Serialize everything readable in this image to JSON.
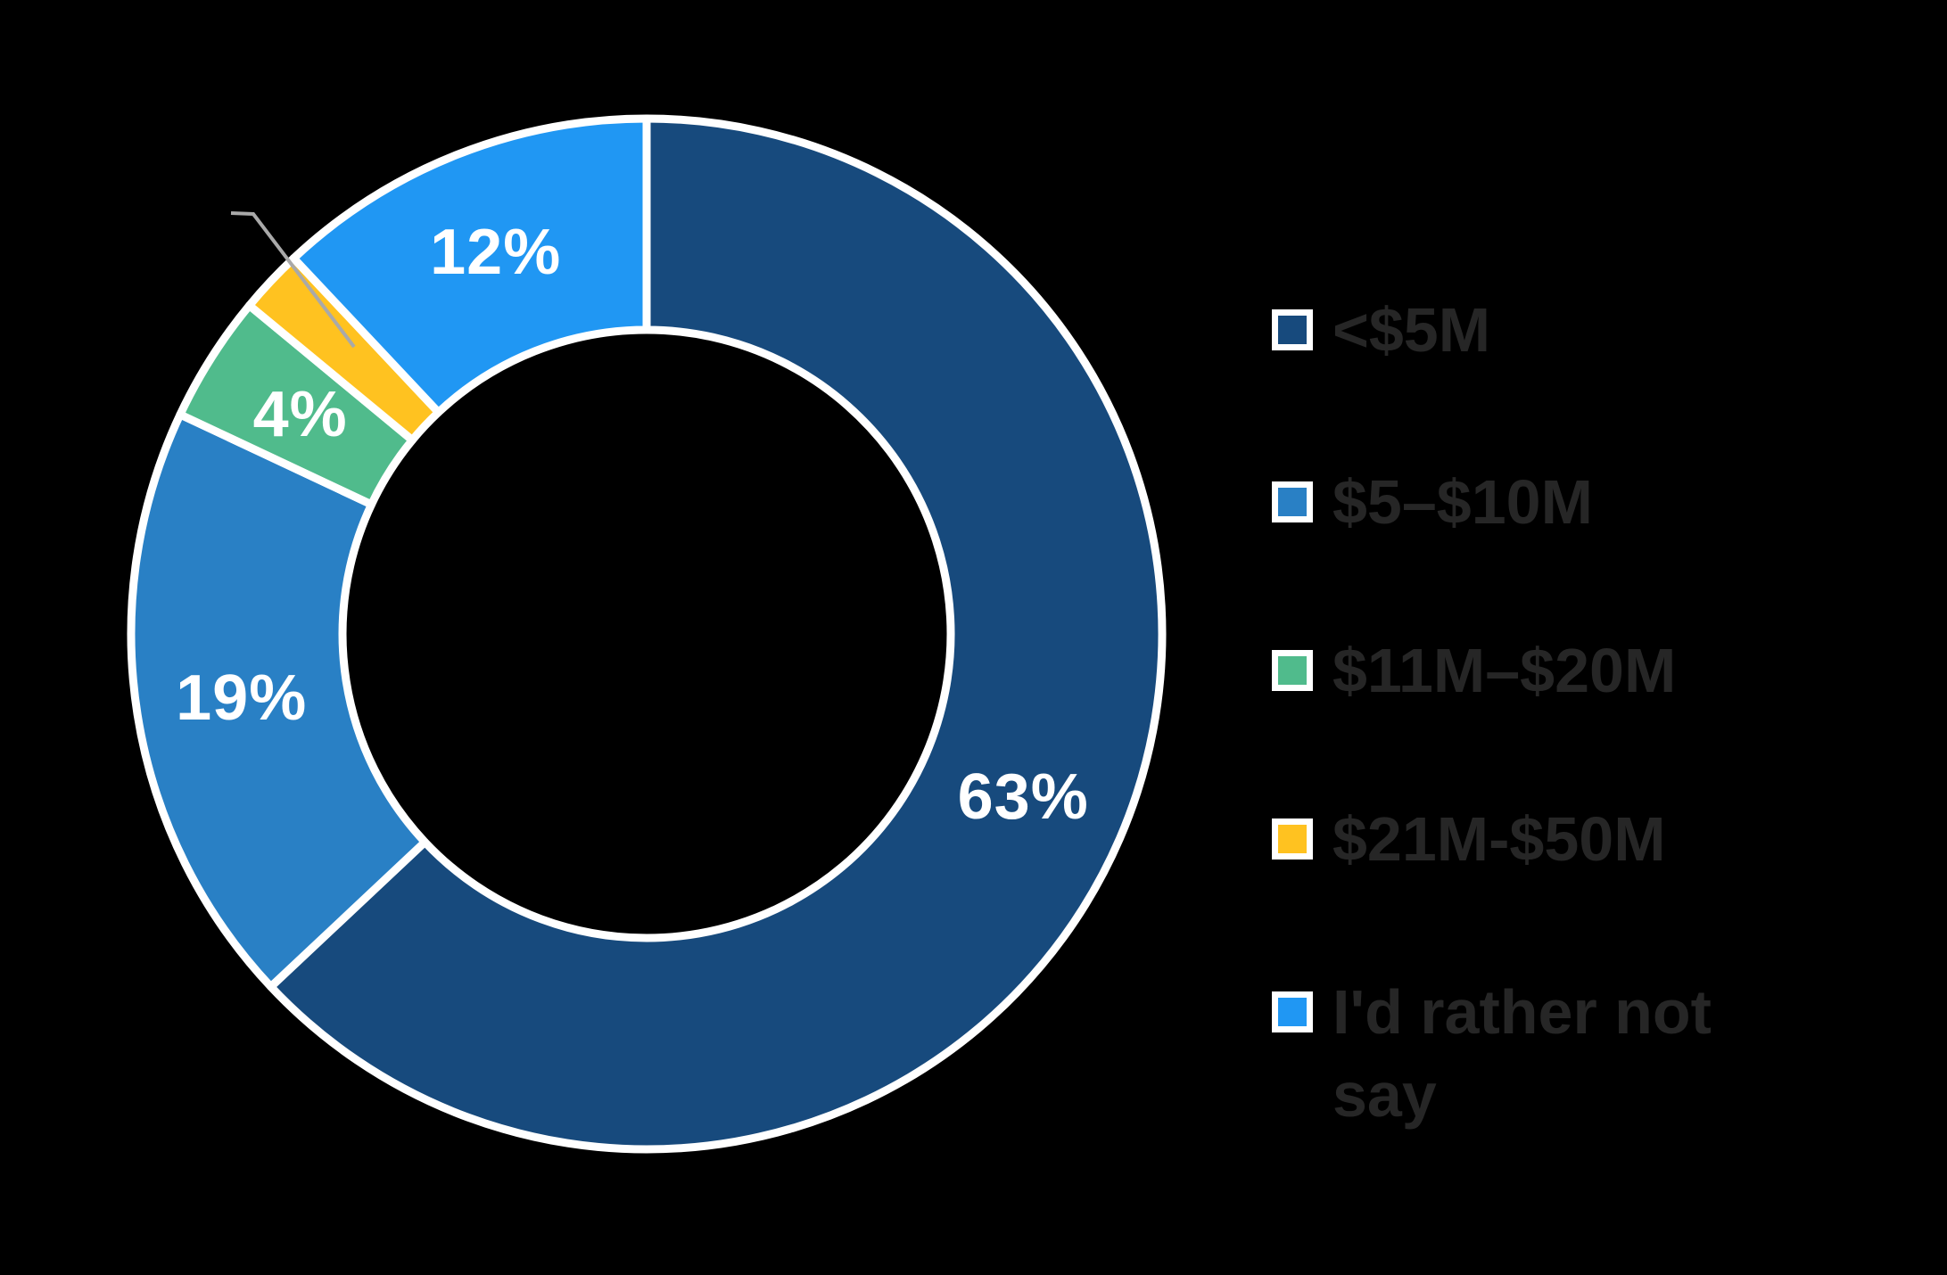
{
  "chart_data": {
    "type": "pie",
    "subtype": "donut",
    "title": "",
    "legend_position": "right",
    "direction": "clockwise",
    "start_angle_deg": 0,
    "donut_hole_ratio": 0.59,
    "gap_color": "#FFFFFF",
    "leader_line_color": "#A9A9A9",
    "data_label_color": "#FFFFFF",
    "legend_text_color": "#262626",
    "background_color": "#000000",
    "slices": [
      {
        "key": "lt-5m",
        "label": "<$5M",
        "value_pct": 63,
        "data_label": "63%",
        "color": "#174A7D"
      },
      {
        "key": "5m-10m",
        "label": "$5–$10M",
        "value_pct": 19,
        "data_label": "19%",
        "color": "#2980C5"
      },
      {
        "key": "11m-20m",
        "label": "$11M–$20M",
        "value_pct": 4,
        "data_label": "4%",
        "color": "#50BB8C"
      },
      {
        "key": "21m-50m",
        "label": "$21M-$50M",
        "value_pct": 2,
        "data_label": "",
        "color": "#FFC220",
        "callout": true
      },
      {
        "key": "rather-not-say",
        "label": "I'd rather not say",
        "value_pct": 12,
        "data_label": "12%",
        "color": "#2097F3"
      }
    ]
  }
}
